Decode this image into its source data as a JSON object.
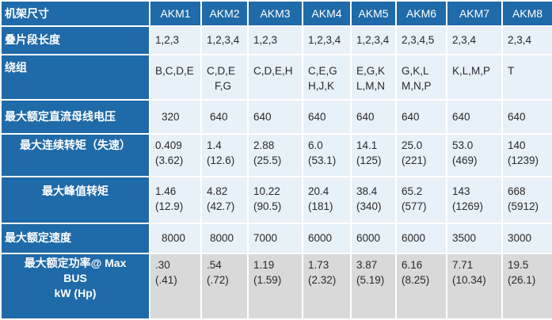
{
  "header": {
    "label": "机架尺寸",
    "models": [
      "AKM1",
      "AKM2",
      "AKM3",
      "AKM4",
      "AKM5",
      "AKM6",
      "AKM7",
      "AKM8"
    ]
  },
  "rows": [
    {
      "label": "叠片段长度",
      "values": [
        [
          "1,2,3"
        ],
        [
          "1,2,3,4"
        ],
        [
          "1,2,3"
        ],
        [
          "1,2,3,4"
        ],
        [
          "1,2,3,4"
        ],
        [
          "2,3,4,5"
        ],
        [
          "2,3,4"
        ],
        [
          "2,3,4"
        ]
      ]
    },
    {
      "label": "绕组",
      "values": [
        [
          "B,C,D,E"
        ],
        [
          "C,D,E",
          "F,G"
        ],
        [
          "C,D,E,H"
        ],
        [
          "C,E,G",
          "H,J,K"
        ],
        [
          "E,G,K",
          "L,M,N"
        ],
        [
          "G,K,L",
          "M,N,P"
        ],
        [
          "K,L,M,P"
        ],
        [
          "T"
        ]
      ]
    },
    {
      "label": "最大额定直流母线电压",
      "values": [
        [
          "320"
        ],
        [
          "640"
        ],
        [
          "640"
        ],
        [
          "640"
        ],
        [
          "640"
        ],
        [
          "640"
        ],
        [
          "640"
        ],
        [
          "640"
        ]
      ]
    },
    {
      "label": "最大连续转矩（失速）",
      "values": [
        [
          "0.409",
          "(3.62)"
        ],
        [
          "1.4",
          "(12.6)"
        ],
        [
          "2.88",
          "(25.5)"
        ],
        [
          "6.0",
          "(53.1)"
        ],
        [
          "14.1",
          "(125)"
        ],
        [
          "25.0",
          "(221)"
        ],
        [
          "53.0",
          "(469)"
        ],
        [
          "140",
          "(1239)"
        ]
      ]
    },
    {
      "label": "最大峰值转矩",
      "values": [
        [
          "1.46",
          "(12.9)"
        ],
        [
          "4.82",
          "(42.7)"
        ],
        [
          "10.22",
          "(90.5)"
        ],
        [
          "20.4",
          "(181)"
        ],
        [
          "38.4",
          "(340)"
        ],
        [
          "65.2",
          "(577)"
        ],
        [
          "143",
          "(1269)"
        ],
        [
          "668",
          "(5912)"
        ]
      ]
    },
    {
      "label": "最大额定速度",
      "values": [
        [
          "8000"
        ],
        [
          "8000"
        ],
        [
          "7000"
        ],
        [
          "6000"
        ],
        [
          "6000"
        ],
        [
          "6000"
        ],
        [
          "3500"
        ],
        [
          "3000"
        ]
      ]
    },
    {
      "label_lines": [
        "最大额定功率@ Max",
        "BUS",
        "kW (Hp)"
      ],
      "values": [
        [
          ".30",
          "(.41)"
        ],
        [
          ".54",
          "(.72)"
        ],
        [
          "1.19",
          "(1.59)"
        ],
        [
          "1.73",
          "(2.32)"
        ],
        [
          "3.87",
          "(5.19)"
        ],
        [
          "6.16",
          "(8.25)"
        ],
        [
          "7.71",
          "(10.34)"
        ],
        [
          "19.5",
          "(26.1)"
        ]
      ]
    }
  ],
  "colors": {
    "header_blue": "#1f6aa8",
    "cell_light": "#e8f0f8",
    "cell_gray": "#d9d9d9",
    "text": "#2a2a2a"
  }
}
